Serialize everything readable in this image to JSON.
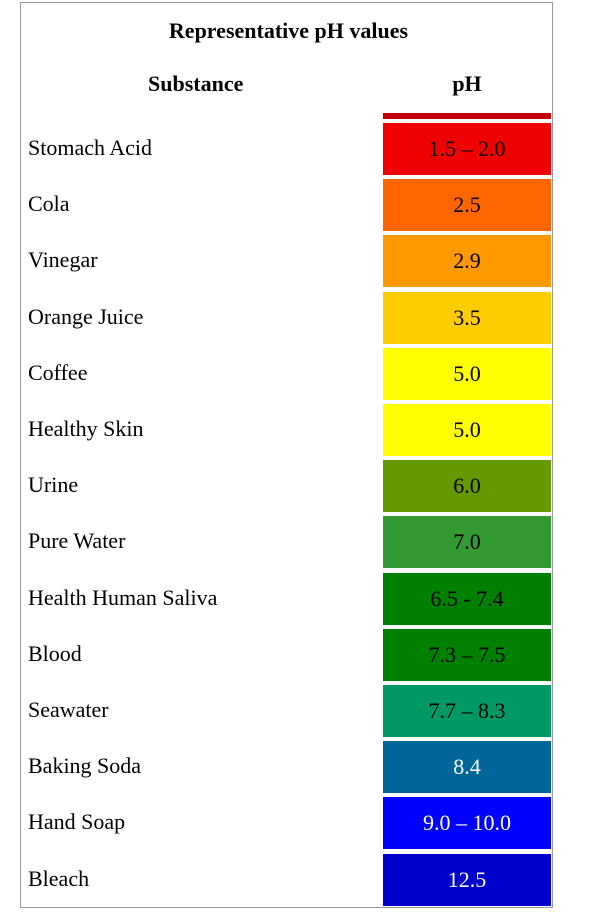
{
  "title": "Representative pH values",
  "headers": {
    "substance": "Substance",
    "ph": "pH"
  },
  "top_bar_color": "#C00000",
  "rows": [
    {
      "substance": "Stomach Acid",
      "ph": "1.5 – 2.0",
      "color": "#F00000",
      "text_color": "#000000"
    },
    {
      "substance": "Cola",
      "ph": "2.5",
      "color": "#FF6600",
      "text_color": "#000000"
    },
    {
      "substance": "Vinegar",
      "ph": "2.9",
      "color": "#FF9900",
      "text_color": "#000000"
    },
    {
      "substance": "Orange Juice",
      "ph": "3.5",
      "color": "#FFCC00",
      "text_color": "#000000"
    },
    {
      "substance": "Coffee",
      "ph": "5.0",
      "color": "#FFFF00",
      "text_color": "#000000"
    },
    {
      "substance": "Healthy Skin",
      "ph": "5.0",
      "color": "#FFFF00",
      "text_color": "#000000"
    },
    {
      "substance": "Urine",
      "ph": "6.0",
      "color": "#669900",
      "text_color": "#000000"
    },
    {
      "substance": "Pure Water",
      "ph": "7.0",
      "color": "#339933",
      "text_color": "#000000"
    },
    {
      "substance": "Health Human Saliva",
      "ph": "6.5 - 7.4",
      "color": "#008000",
      "text_color": "#000000"
    },
    {
      "substance": "Blood",
      "ph": "7.3 – 7.5",
      "color": "#008000",
      "text_color": "#000000"
    },
    {
      "substance": "Seawater",
      "ph": "7.7 – 8.3",
      "color": "#009966",
      "text_color": "#000000"
    },
    {
      "substance": "Baking Soda",
      "ph": "8.4",
      "color": "#006699",
      "text_color": "#FFFFFF"
    },
    {
      "substance": "Hand Soap",
      "ph": "9.0 – 10.0",
      "color": "#0000FF",
      "text_color": "#FFFFFF"
    },
    {
      "substance": "Bleach",
      "ph": "12.5",
      "color": "#0000CC",
      "text_color": "#FFFFFF"
    }
  ]
}
